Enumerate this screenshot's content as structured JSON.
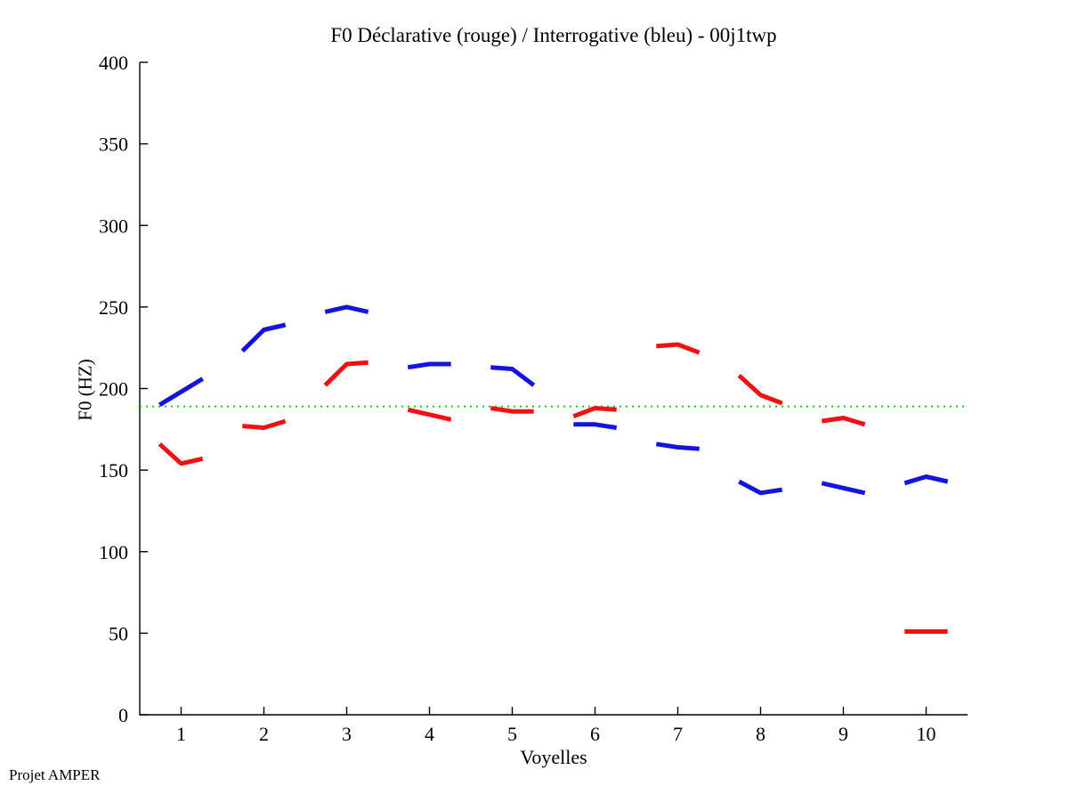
{
  "page": {
    "background": "#ffffff",
    "footer": "Projet AMPER"
  },
  "chart_data": {
    "type": "line",
    "title": "F0 Déclarative (rouge) / Interrogative (bleu) - 00j1twp",
    "xlabel": "Voyelles",
    "ylabel": "F0 (HZ)",
    "xlim": [
      0.5,
      10.5
    ],
    "ylim": [
      0,
      400
    ],
    "xticks": [
      1,
      2,
      3,
      4,
      5,
      6,
      7,
      8,
      9,
      10
    ],
    "yticks": [
      0,
      50,
      100,
      150,
      200,
      250,
      300,
      350,
      400
    ],
    "grid": false,
    "legend_position": "none (encoded in title: rouge = déclarative, bleu = interrogative)",
    "axis_color": "#000000",
    "reference_line": {
      "value": 189,
      "color": "#2db82d",
      "style": "dotted"
    },
    "segment_halfwidth": 0.26,
    "line_width": 5,
    "series": [
      {
        "name": "Déclarative (rouge)",
        "color": "#ee1212",
        "segments": [
          {
            "x": 1,
            "values": [
              166,
              154,
              157
            ]
          },
          {
            "x": 2,
            "values": [
              177,
              176,
              180
            ]
          },
          {
            "x": 3,
            "values": [
              202,
              215,
              216
            ]
          },
          {
            "x": 4,
            "values": [
              187,
              184,
              181
            ]
          },
          {
            "x": 5,
            "values": [
              188,
              186,
              186
            ]
          },
          {
            "x": 6,
            "values": [
              183,
              188,
              187
            ]
          },
          {
            "x": 7,
            "values": [
              226,
              227,
              222
            ]
          },
          {
            "x": 8,
            "values": [
              208,
              196,
              191
            ]
          },
          {
            "x": 9,
            "values": [
              180,
              182,
              178
            ]
          },
          {
            "x": 10,
            "values": [
              51,
              51,
              51
            ]
          }
        ]
      },
      {
        "name": "Interrogative (bleu)",
        "color": "#1414dd",
        "segments": [
          {
            "x": 1,
            "values": [
              190,
              198,
              206
            ]
          },
          {
            "x": 2,
            "values": [
              223,
              236,
              239
            ]
          },
          {
            "x": 3,
            "values": [
              247,
              250,
              247
            ]
          },
          {
            "x": 4,
            "values": [
              213,
              215,
              215
            ]
          },
          {
            "x": 5,
            "values": [
              213,
              212,
              202
            ]
          },
          {
            "x": 6,
            "values": [
              178,
              178,
              176
            ]
          },
          {
            "x": 7,
            "values": [
              166,
              164,
              163
            ]
          },
          {
            "x": 8,
            "values": [
              143,
              136,
              138
            ]
          },
          {
            "x": 9,
            "values": [
              142,
              139,
              136
            ]
          },
          {
            "x": 10,
            "values": [
              142,
              146,
              143
            ]
          }
        ]
      }
    ]
  }
}
